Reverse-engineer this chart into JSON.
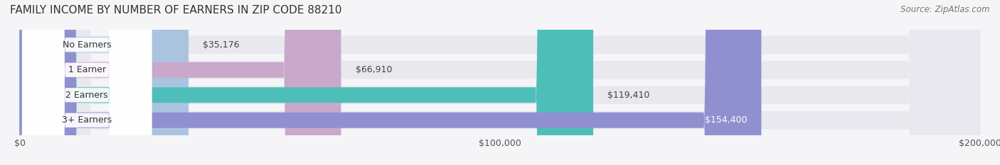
{
  "title": "FAMILY INCOME BY NUMBER OF EARNERS IN ZIP CODE 88210",
  "source": "Source: ZipAtlas.com",
  "categories": [
    "No Earners",
    "1 Earner",
    "2 Earners",
    "3+ Earners"
  ],
  "values": [
    35176,
    66910,
    119410,
    154400
  ],
  "labels": [
    "$35,176",
    "$66,910",
    "$119,410",
    "$154,400"
  ],
  "bar_colors": [
    "#aac4e0",
    "#c9a8cc",
    "#4dbfb8",
    "#9090d0"
  ],
  "bar_track_color": "#e8e8ee",
  "xlim": [
    0,
    200000
  ],
  "xticks": [
    0,
    100000,
    200000
  ],
  "xtick_labels": [
    "$0",
    "$100,000",
    "$200,000"
  ],
  "background_color": "#f5f5f8",
  "title_fontsize": 11,
  "label_fontsize": 9,
  "tick_fontsize": 9,
  "source_fontsize": 8.5
}
